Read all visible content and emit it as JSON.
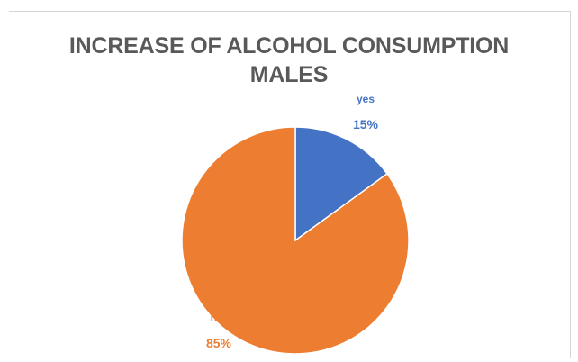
{
  "chart_data": {
    "type": "pie",
    "title": [
      "INCREASE OF ALCOHOL CONSUMPTION",
      "MALES"
    ],
    "slices": [
      {
        "name": "yes",
        "value": 15,
        "label": "15%",
        "color": "#4472C4"
      },
      {
        "name": "no",
        "value": 85,
        "label": "85%",
        "color": "#ED7D31"
      }
    ],
    "legend": "none",
    "data_labels": "category-and-percentage"
  }
}
